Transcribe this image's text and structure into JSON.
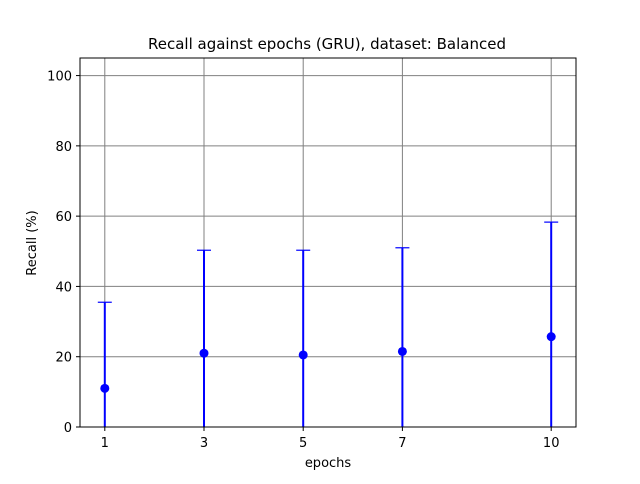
{
  "chart_data": {
    "type": "scatter",
    "title": "Recall against epochs (GRU), dataset: Balanced",
    "xlabel": "epochs",
    "ylabel": "Recall (%)",
    "x": [
      1,
      3,
      5,
      7,
      10
    ],
    "x_ticks": [
      "1",
      "3",
      "5",
      "7",
      "10"
    ],
    "xlim": [
      0.5,
      10.5
    ],
    "ylim": [
      0,
      105
    ],
    "y_ticks": [
      "0",
      "20",
      "40",
      "60",
      "80",
      "100"
    ],
    "grid": true,
    "series": [
      {
        "values": [
          11.0,
          21.0,
          20.5,
          21.5,
          25.7
        ],
        "error_upper": [
          35.5,
          50.3,
          50.3,
          51.0,
          58.3
        ],
        "error_lower": [
          0,
          0,
          0,
          0,
          0
        ],
        "color": "#0000ff"
      }
    ],
    "grid_color": "#808080"
  }
}
